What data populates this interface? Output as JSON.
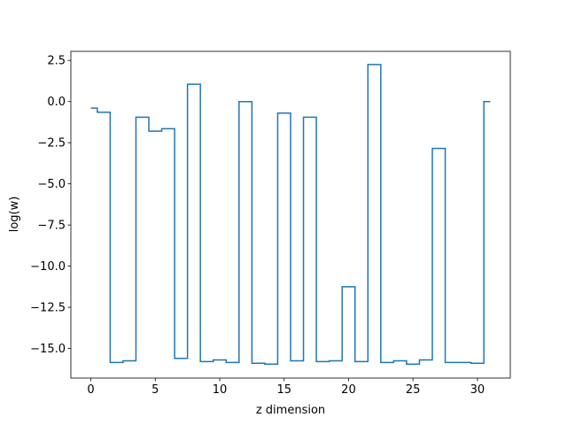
{
  "chart_data": {
    "type": "line",
    "drawstyle": "steps-mid",
    "xlabel": "z dimension",
    "ylabel": "log(w)",
    "xlim": [
      -1.55,
      32.55
    ],
    "ylim": [
      -16.8,
      3.05
    ],
    "xticks": [
      0,
      5,
      10,
      15,
      20,
      25,
      30
    ],
    "yticks": [
      2.5,
      0.0,
      -2.5,
      -5.0,
      -7.5,
      -10.0,
      -12.5,
      -15.0
    ],
    "xtick_labels": [
      "0",
      "5",
      "10",
      "15",
      "20",
      "25",
      "30"
    ],
    "ytick_labels": [
      "2.5",
      "0.0",
      "−2.5",
      "−5.0",
      "−7.5",
      "−10.0",
      "−12.5",
      "−15.0"
    ],
    "grid": false,
    "line_color": "#1f77b4",
    "series": [
      {
        "x": [
          0,
          1,
          2,
          3,
          4,
          5,
          6,
          7,
          8,
          9,
          10,
          11,
          12,
          13,
          14,
          15,
          16,
          17,
          18,
          19,
          20,
          21,
          22,
          23,
          24,
          25,
          26,
          27,
          28,
          29,
          30,
          31
        ],
        "values": [
          -0.4,
          -0.65,
          -15.85,
          -15.75,
          -0.95,
          -1.8,
          -1.65,
          -15.6,
          1.05,
          -15.8,
          -15.7,
          -15.85,
          0.0,
          -15.9,
          -15.95,
          -0.7,
          -15.75,
          -0.95,
          -15.8,
          -15.75,
          -11.25,
          -15.8,
          2.25,
          -15.85,
          -15.75,
          -15.95,
          -15.7,
          -2.85,
          -15.85,
          -15.85,
          -15.9,
          0.0
        ]
      }
    ]
  }
}
